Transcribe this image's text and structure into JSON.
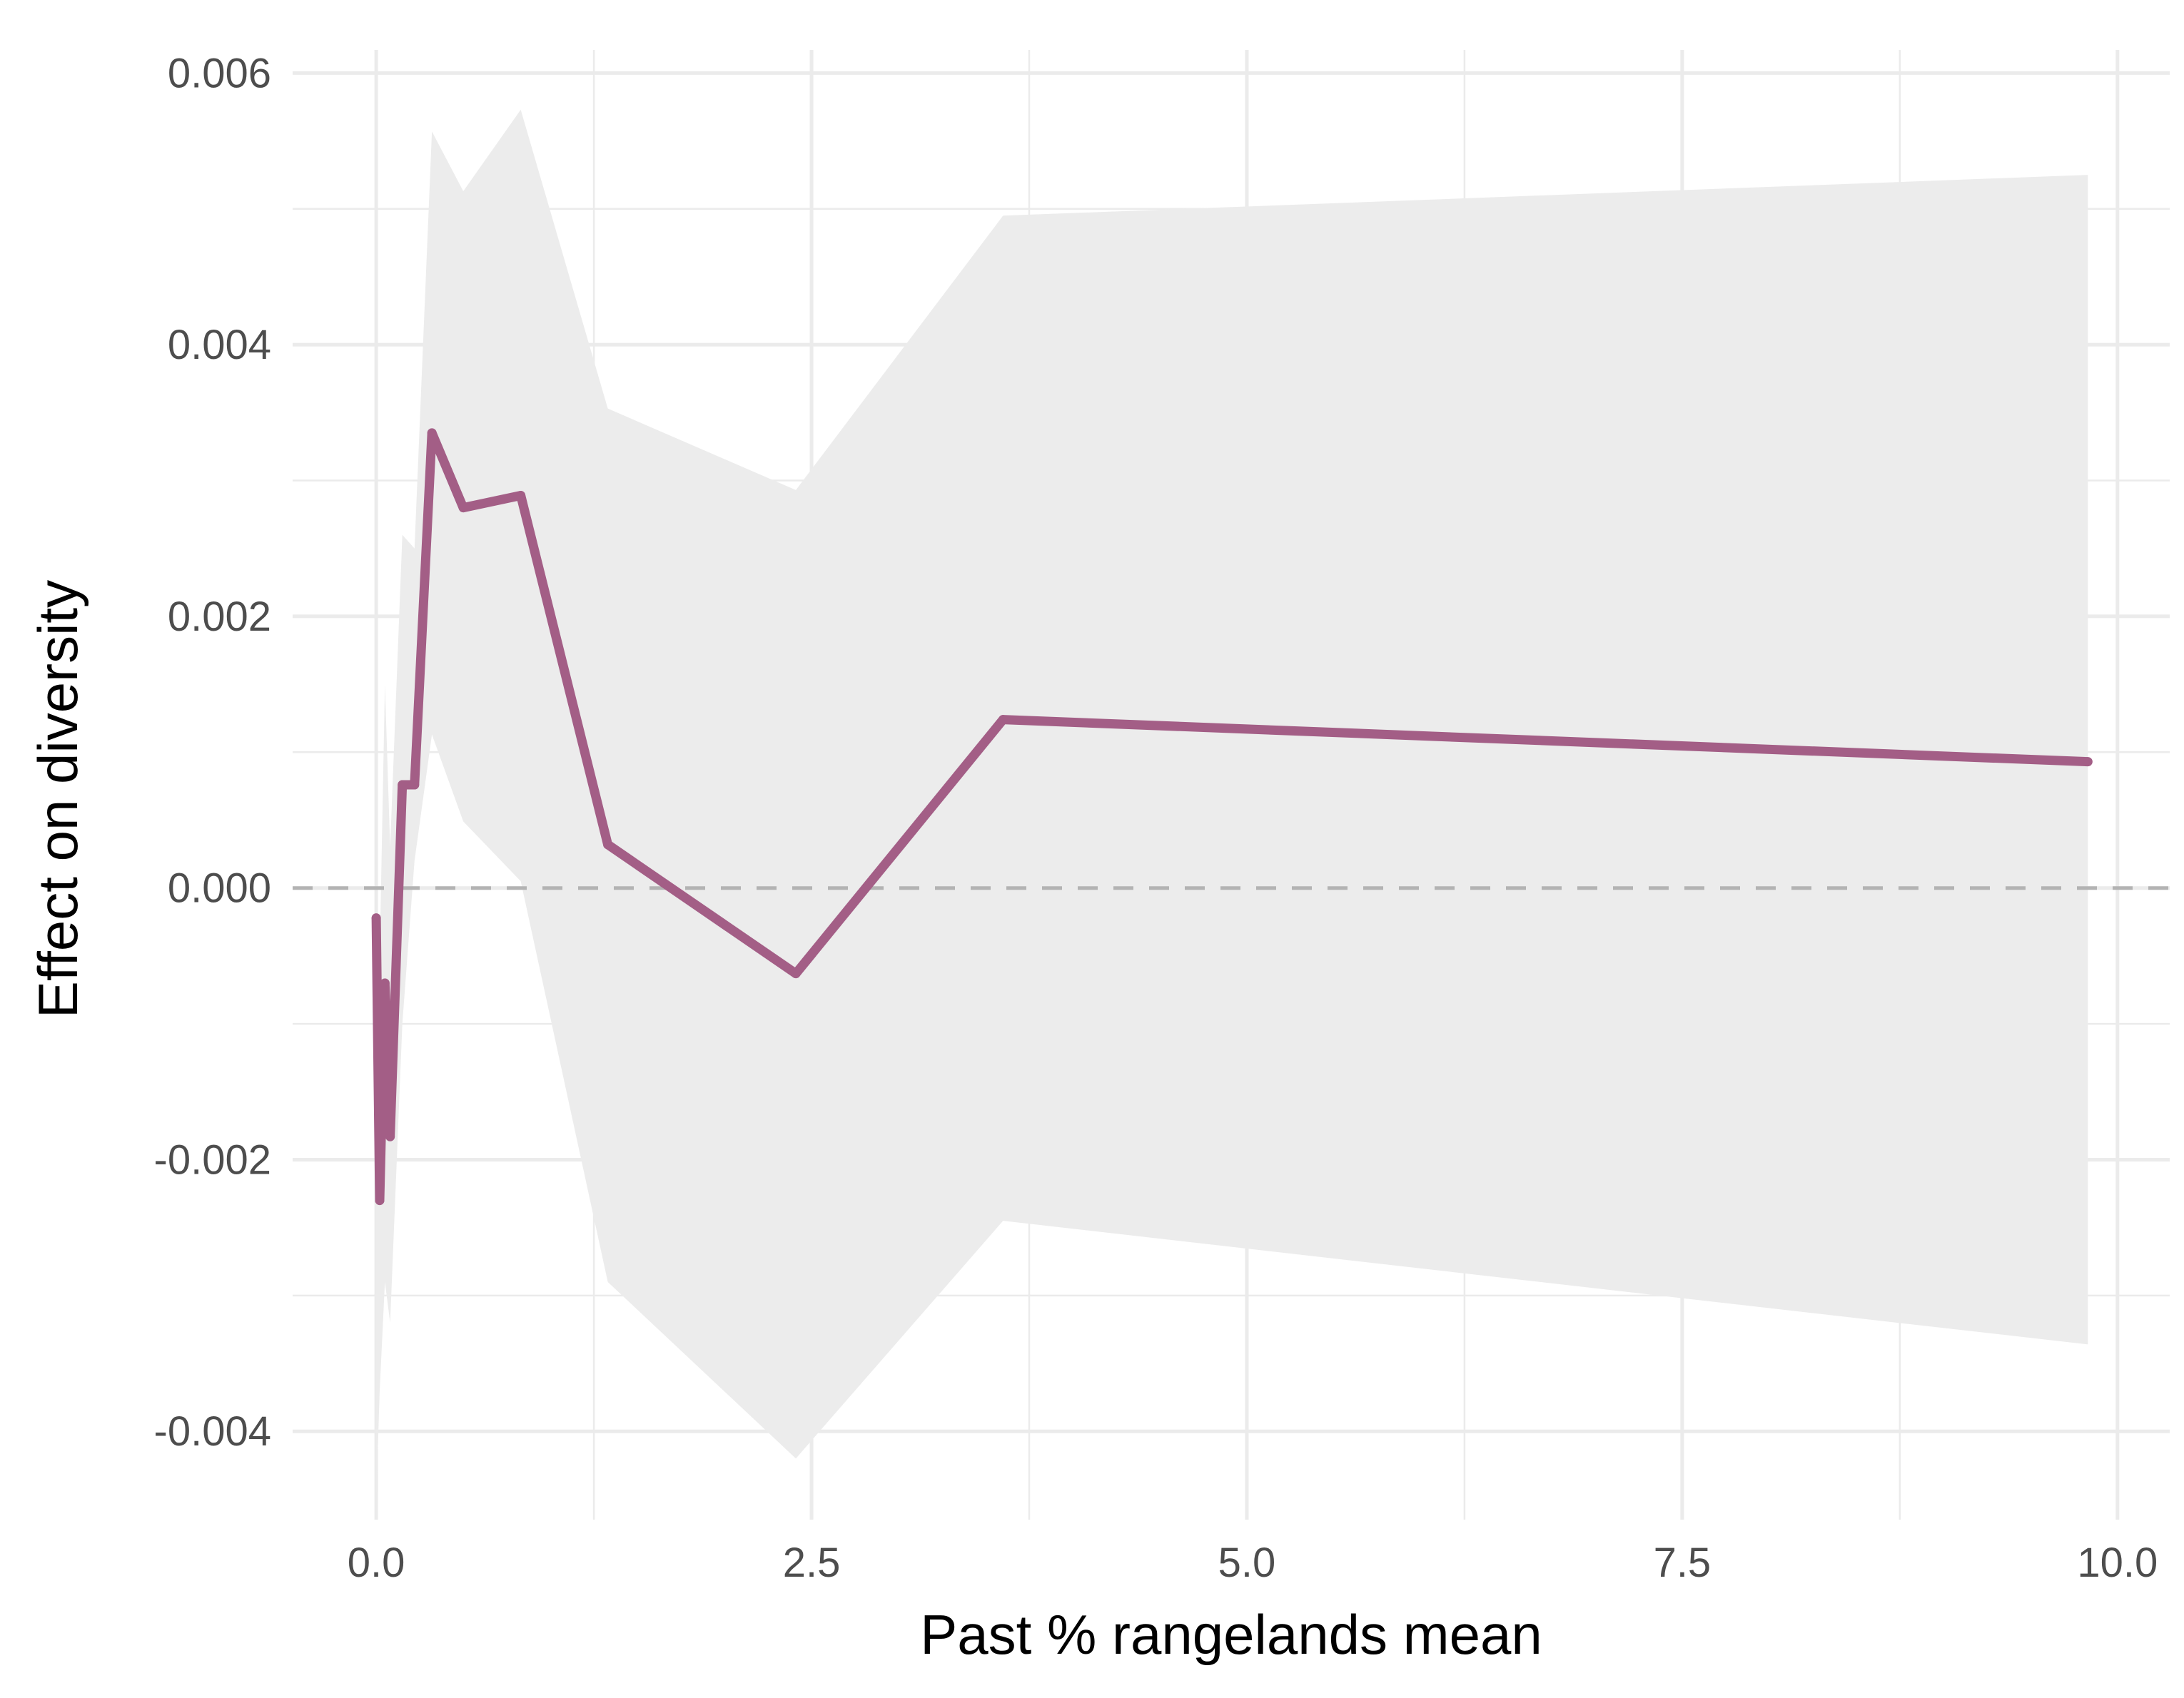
{
  "chart_data": {
    "type": "line",
    "title": "",
    "xlabel": "Past % rangelands mean",
    "ylabel": "Effect on diversity",
    "xlim": [
      -0.48,
      10.3
    ],
    "ylim": [
      -0.00465,
      0.00617
    ],
    "x_ticks": [
      0.0,
      2.5,
      5.0,
      7.5,
      10.0
    ],
    "x_tick_labels": [
      "0.0",
      "2.5",
      "5.0",
      "7.5",
      "10.0"
    ],
    "y_ticks": [
      -0.004,
      -0.002,
      0.0,
      0.002,
      0.004,
      0.006
    ],
    "y_tick_labels": [
      "-0.004",
      "-0.002",
      "0.000",
      "0.002",
      "0.004",
      "0.006"
    ],
    "grid": true,
    "reference_line": {
      "y": 0.0,
      "style": "dashed"
    },
    "series": [
      {
        "x": [
          0.0,
          0.02,
          0.05,
          0.08,
          0.15,
          0.22,
          0.32,
          0.5,
          0.83,
          1.33,
          2.41,
          3.6,
          9.83
        ],
        "y": [
          -0.00022,
          -0.0023,
          -0.0007,
          -0.00183,
          0.00076,
          0.00076,
          0.00335,
          0.0028,
          0.00289,
          0.00032,
          -0.00063,
          0.00124,
          0.00093
        ],
        "ci_upper": [
          -0.00022,
          -0.0005,
          0.0015,
          0.0003,
          0.0026,
          0.0025,
          0.00557,
          0.00513,
          0.00573,
          0.00353,
          0.00293,
          0.00495,
          0.00525
        ],
        "ci_lower": [
          -0.0045,
          -0.0037,
          -0.0029,
          -0.0032,
          -0.001,
          0.0002,
          0.00113,
          0.00049,
          5e-05,
          -0.0029,
          -0.0042,
          -0.00245,
          -0.00336
        ]
      }
    ],
    "colors": {
      "line": "#a35e86",
      "ribbon": "#ececec",
      "grid": "#ebebeb",
      "zero_line": "#b3b3b3"
    }
  }
}
